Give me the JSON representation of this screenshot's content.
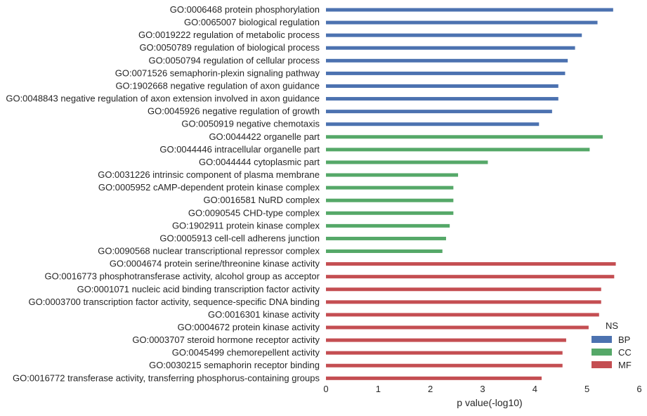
{
  "chart_data": {
    "type": "bar",
    "orientation": "horizontal",
    "xlabel": "p value(-log10)",
    "ylabel": "",
    "xlim": [
      0,
      6
    ],
    "xticks": [
      0,
      1,
      2,
      3,
      4,
      5,
      6
    ],
    "grid": false,
    "legend": {
      "title": "NS",
      "placement": "lower-right",
      "entries": [
        {
          "name": "BP",
          "color": "#4c72b0"
        },
        {
          "name": "CC",
          "color": "#55a868"
        },
        {
          "name": "MF",
          "color": "#c44e52"
        }
      ]
    },
    "categories": [
      {
        "label": "GO:0006468 protein phosphorylation",
        "value": 5.5,
        "ns": "BP"
      },
      {
        "label": "GO:0065007 biological regulation",
        "value": 5.2,
        "ns": "BP"
      },
      {
        "label": "GO:0019222 regulation of metabolic process",
        "value": 4.9,
        "ns": "BP"
      },
      {
        "label": "GO:0050789 regulation of biological process",
        "value": 4.77,
        "ns": "BP"
      },
      {
        "label": "GO:0050794 regulation of cellular process",
        "value": 4.63,
        "ns": "BP"
      },
      {
        "label": "GO:0071526 semaphorin-plexin signaling pathway",
        "value": 4.58,
        "ns": "BP"
      },
      {
        "label": "GO:1902668 negative regulation of axon guidance",
        "value": 4.45,
        "ns": "BP"
      },
      {
        "label": "GO:0048843 negative regulation of axon extension involved in axon guidance",
        "value": 4.45,
        "ns": "BP"
      },
      {
        "label": "GO:0045926 negative regulation of growth",
        "value": 4.33,
        "ns": "BP"
      },
      {
        "label": "GO:0050919 negative chemotaxis",
        "value": 4.08,
        "ns": "BP"
      },
      {
        "label": "GO:0044422 organelle part",
        "value": 5.3,
        "ns": "CC"
      },
      {
        "label": "GO:0044446 intracellular organelle part",
        "value": 5.05,
        "ns": "CC"
      },
      {
        "label": "GO:0044444 cytoplasmic part",
        "value": 3.1,
        "ns": "CC"
      },
      {
        "label": "GO:0031226 intrinsic component of plasma membrane",
        "value": 2.53,
        "ns": "CC"
      },
      {
        "label": "GO:0005952 cAMP-dependent protein kinase complex",
        "value": 2.44,
        "ns": "CC"
      },
      {
        "label": "GO:0016581 NuRD complex",
        "value": 2.44,
        "ns": "CC"
      },
      {
        "label": "GO:0090545 CHD-type complex",
        "value": 2.44,
        "ns": "CC"
      },
      {
        "label": "GO:1902911 protein kinase complex",
        "value": 2.37,
        "ns": "CC"
      },
      {
        "label": "GO:0005913 cell-cell adherens junction",
        "value": 2.3,
        "ns": "CC"
      },
      {
        "label": "GO:0090568 nuclear transcriptional repressor complex",
        "value": 2.23,
        "ns": "CC"
      },
      {
        "label": "GO:0004674 protein serine/threonine kinase activity",
        "value": 5.55,
        "ns": "MF"
      },
      {
        "label": "GO:0016773 phosphotransferase activity, alcohol group as acceptor",
        "value": 5.52,
        "ns": "MF"
      },
      {
        "label": "GO:0001071 nucleic acid binding transcription factor activity",
        "value": 5.27,
        "ns": "MF"
      },
      {
        "label": "GO:0003700 transcription factor activity, sequence-specific DNA binding",
        "value": 5.27,
        "ns": "MF"
      },
      {
        "label": "GO:0016301 kinase activity",
        "value": 5.23,
        "ns": "MF"
      },
      {
        "label": "GO:0004672 protein kinase activity",
        "value": 5.03,
        "ns": "MF"
      },
      {
        "label": "GO:0003707 steroid hormone receptor activity",
        "value": 4.6,
        "ns": "MF"
      },
      {
        "label": "GO:0045499 chemorepellent activity",
        "value": 4.53,
        "ns": "MF"
      },
      {
        "label": "GO:0030215 semaphorin receptor binding",
        "value": 4.53,
        "ns": "MF"
      },
      {
        "label": "GO:0016772 transferase activity, transferring phosphorus-containing groups",
        "value": 4.13,
        "ns": "MF"
      }
    ]
  }
}
